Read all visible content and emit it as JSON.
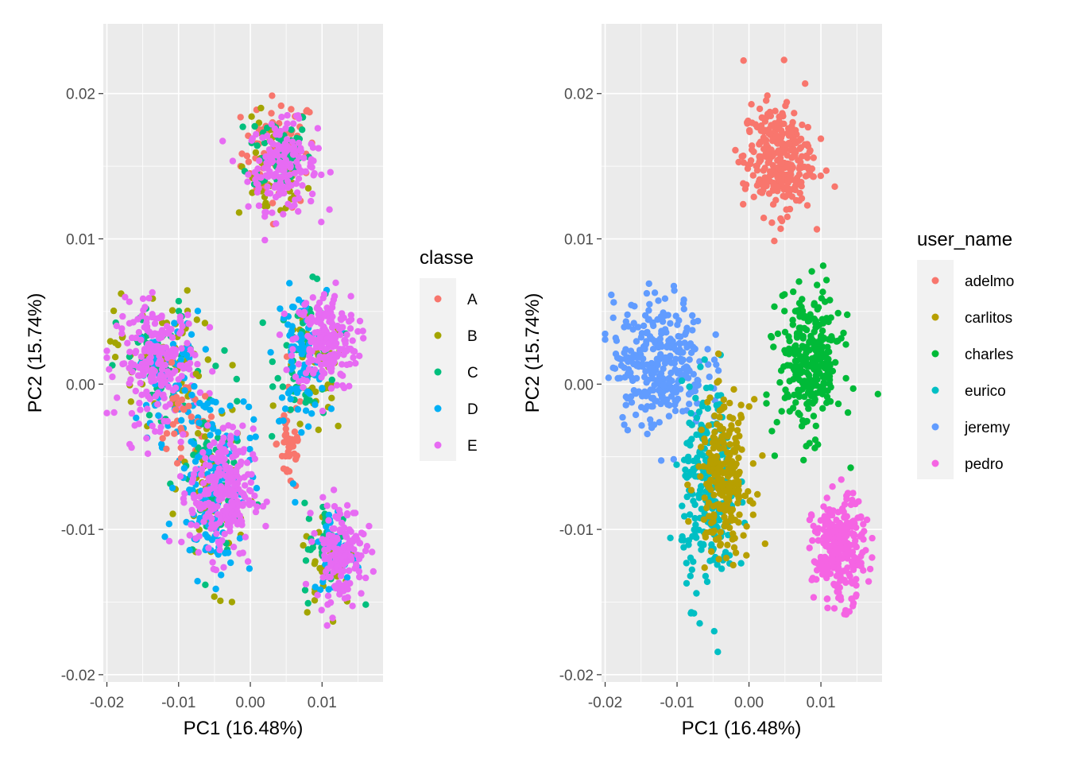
{
  "chart_data": [
    {
      "type": "scatter",
      "xlabel": "PC1 (16.48%)",
      "ylabel": "PC2 (15.74%)",
      "xlim": [
        -0.0205,
        0.0185
      ],
      "ylim": [
        -0.0205,
        0.0248
      ],
      "x_ticks": [
        -0.02,
        -0.01,
        0.0,
        0.01
      ],
      "x_tick_labels": [
        "-0.02",
        "-0.01",
        "0.00",
        "0.01"
      ],
      "y_ticks": [
        -0.02,
        -0.01,
        0.0,
        0.01,
        0.02
      ],
      "y_tick_labels": [
        "-0.02",
        "-0.01",
        "0.00",
        "0.01",
        "0.02"
      ],
      "grid": true,
      "legend": {
        "title": "classe",
        "position": "right"
      },
      "series": [
        {
          "name": "A",
          "color": "#F8766D"
        },
        {
          "name": "B",
          "color": "#A3A500"
        },
        {
          "name": "C",
          "color": "#00BF7D"
        },
        {
          "name": "D",
          "color": "#00B0F6"
        },
        {
          "name": "E",
          "color": "#E76BF3"
        }
      ],
      "clusters": [
        {
          "series": "A",
          "cx": 0.004,
          "cy": 0.016,
          "sx": 0.0026,
          "sy": 0.0019,
          "n": 70
        },
        {
          "series": "B",
          "cx": 0.003,
          "cy": 0.0145,
          "sx": 0.0024,
          "sy": 0.0018,
          "n": 40
        },
        {
          "series": "C",
          "cx": 0.004,
          "cy": 0.016,
          "sx": 0.0022,
          "sy": 0.0016,
          "n": 60
        },
        {
          "series": "E",
          "cx": 0.0045,
          "cy": 0.015,
          "sx": 0.0024,
          "sy": 0.0015,
          "n": 170
        },
        {
          "series": "A",
          "cx": 0.0055,
          "cy": -0.004,
          "sx": 0.0009,
          "sy": 0.0018,
          "n": 45
        },
        {
          "series": "B",
          "cx": 0.009,
          "cy": 0.0005,
          "sx": 0.0022,
          "sy": 0.0022,
          "n": 50
        },
        {
          "series": "C",
          "cx": 0.008,
          "cy": 0.002,
          "sx": 0.0022,
          "sy": 0.0022,
          "n": 60
        },
        {
          "series": "D",
          "cx": 0.007,
          "cy": 0.002,
          "sx": 0.0018,
          "sy": 0.0022,
          "n": 90
        },
        {
          "series": "E",
          "cx": 0.0105,
          "cy": 0.003,
          "sx": 0.0022,
          "sy": 0.0017,
          "n": 200
        },
        {
          "series": "B",
          "cx": -0.013,
          "cy": 0.002,
          "sx": 0.003,
          "sy": 0.0022,
          "n": 60
        },
        {
          "series": "C",
          "cx": -0.0125,
          "cy": 0.001,
          "sx": 0.003,
          "sy": 0.0022,
          "n": 60
        },
        {
          "series": "D",
          "cx": -0.011,
          "cy": 0.0005,
          "sx": 0.0022,
          "sy": 0.0022,
          "n": 60
        },
        {
          "series": "E",
          "cx": -0.013,
          "cy": 0.0015,
          "sx": 0.0028,
          "sy": 0.002,
          "n": 220
        },
        {
          "series": "A",
          "cx": -0.009,
          "cy": -0.003,
          "sx": 0.0018,
          "sy": 0.002,
          "n": 35
        },
        {
          "series": "B",
          "cx": -0.005,
          "cy": -0.007,
          "sx": 0.0022,
          "sy": 0.0032,
          "n": 60
        },
        {
          "series": "C",
          "cx": -0.0055,
          "cy": -0.007,
          "sx": 0.0022,
          "sy": 0.0032,
          "n": 60
        },
        {
          "series": "D",
          "cx": -0.005,
          "cy": -0.0065,
          "sx": 0.0026,
          "sy": 0.0034,
          "n": 130
        },
        {
          "series": "E",
          "cx": -0.004,
          "cy": -0.0075,
          "sx": 0.0022,
          "sy": 0.0022,
          "n": 250
        },
        {
          "series": "B",
          "cx": 0.011,
          "cy": -0.012,
          "sx": 0.0018,
          "sy": 0.0017,
          "n": 40
        },
        {
          "series": "C",
          "cx": 0.011,
          "cy": -0.0115,
          "sx": 0.0018,
          "sy": 0.0017,
          "n": 40
        },
        {
          "series": "D",
          "cx": 0.012,
          "cy": -0.0115,
          "sx": 0.0017,
          "sy": 0.0016,
          "n": 40
        },
        {
          "series": "E",
          "cx": 0.0125,
          "cy": -0.0115,
          "sx": 0.0017,
          "sy": 0.0017,
          "n": 150
        }
      ]
    },
    {
      "type": "scatter",
      "xlabel": "PC1 (16.48%)",
      "ylabel": "PC2 (15.74%)",
      "xlim": [
        -0.0205,
        0.0185
      ],
      "ylim": [
        -0.0205,
        0.0248
      ],
      "x_ticks": [
        -0.02,
        -0.01,
        0.0,
        0.01
      ],
      "x_tick_labels": [
        "-0.02",
        "-0.01",
        "0.00",
        "0.01"
      ],
      "y_ticks": [
        -0.02,
        -0.01,
        0.0,
        0.01,
        0.02
      ],
      "y_tick_labels": [
        "-0.02",
        "-0.01",
        "0.00",
        "0.01",
        "0.02"
      ],
      "grid": true,
      "legend": {
        "title": "user_name",
        "position": "right"
      },
      "series": [
        {
          "name": "adelmo",
          "color": "#F8766D"
        },
        {
          "name": "carlitos",
          "color": "#B79F00"
        },
        {
          "name": "charles",
          "color": "#00BA38"
        },
        {
          "name": "eurico",
          "color": "#00BFC4"
        },
        {
          "name": "jeremy",
          "color": "#619CFF"
        },
        {
          "name": "pedro",
          "color": "#F564E3"
        }
      ],
      "clusters": [
        {
          "series": "adelmo",
          "cx": 0.004,
          "cy": 0.0155,
          "sx": 0.0024,
          "sy": 0.0019,
          "n": 300
        },
        {
          "series": "jeremy",
          "cx": -0.0125,
          "cy": 0.0015,
          "sx": 0.0032,
          "sy": 0.0022,
          "n": 320
        },
        {
          "series": "eurico",
          "cx": -0.0055,
          "cy": -0.0075,
          "sx": 0.0019,
          "sy": 0.0035,
          "n": 250
        },
        {
          "series": "carlitos",
          "cx": -0.0035,
          "cy": -0.0065,
          "sx": 0.0018,
          "sy": 0.0026,
          "n": 230
        },
        {
          "series": "charles",
          "cx": 0.0085,
          "cy": 0.0015,
          "sx": 0.0022,
          "sy": 0.0024,
          "n": 300
        },
        {
          "series": "pedro",
          "cx": 0.0125,
          "cy": -0.0115,
          "sx": 0.0018,
          "sy": 0.0018,
          "n": 260
        }
      ]
    }
  ]
}
